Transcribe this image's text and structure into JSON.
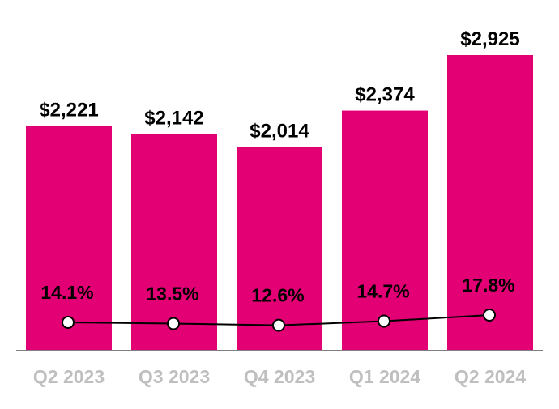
{
  "chart_data": {
    "type": "bar",
    "categories": [
      "Q2 2023",
      "Q3 2023",
      "Q4 2023",
      "Q1 2024",
      "Q2 2024"
    ],
    "series": [
      {
        "type": "bar",
        "values": [
          2221,
          2142,
          2014,
          2374,
          2925
        ],
        "labels": [
          "$2,221",
          "$2,142",
          "$2,014",
          "$2,374",
          "$2,925"
        ]
      },
      {
        "type": "line",
        "values": [
          14.1,
          13.5,
          12.6,
          14.7,
          17.8
        ],
        "labels": [
          "14.1%",
          "13.5%",
          "12.6%",
          "14.7%",
          "17.8%"
        ]
      }
    ],
    "title": "",
    "xlabel": "",
    "ylabel": "",
    "ylim": [
      0,
      2925
    ],
    "grid": false,
    "legend": "none",
    "colors": {
      "bar": "#E20074",
      "line": "#000000",
      "marker_fill": "#FFFFFF",
      "category_label": "#BFBFBF",
      "axis": "#808080"
    }
  }
}
